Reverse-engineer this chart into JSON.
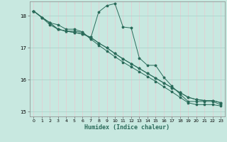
{
  "xlabel": "Humidex (Indice chaleur)",
  "bg_color": "#c8e8e0",
  "line_color": "#2a6b5a",
  "grid_color": "#a8d0c8",
  "grid_color_v": "#e8c8d0",
  "xlim": [
    -0.5,
    23.5
  ],
  "ylim": [
    14.85,
    18.45
  ],
  "yticks": [
    15,
    16,
    17,
    18
  ],
  "xticks": [
    0,
    1,
    2,
    3,
    4,
    5,
    6,
    7,
    8,
    9,
    10,
    11,
    12,
    13,
    14,
    15,
    16,
    17,
    18,
    19,
    20,
    21,
    22,
    23
  ],
  "line1_x": [
    0,
    1,
    2,
    3,
    4,
    5,
    6,
    7,
    8,
    9,
    10,
    11,
    12,
    13,
    14,
    15,
    16,
    17,
    18,
    19,
    20,
    21,
    22,
    23
  ],
  "line1_y": [
    18.15,
    17.95,
    17.78,
    17.58,
    17.52,
    17.48,
    17.43,
    17.33,
    17.15,
    17.0,
    16.82,
    16.65,
    16.5,
    16.35,
    16.2,
    16.05,
    15.9,
    15.75,
    15.6,
    15.45,
    15.38,
    15.35,
    15.35,
    15.28
  ],
  "line2_x": [
    0,
    1,
    2,
    3,
    4,
    5,
    6,
    7,
    8,
    9,
    10,
    11,
    12,
    13,
    14,
    15,
    16,
    17,
    18,
    19,
    20,
    21,
    22,
    23
  ],
  "line2_y": [
    18.15,
    17.95,
    17.78,
    17.58,
    17.52,
    17.48,
    17.43,
    17.33,
    17.15,
    17.0,
    16.82,
    16.65,
    16.5,
    16.35,
    16.2,
    16.05,
    15.9,
    15.75,
    15.6,
    15.45,
    15.38,
    15.35,
    15.35,
    15.28
  ],
  "line3_x": [
    0,
    2,
    3,
    4,
    5,
    6,
    7,
    8,
    9,
    10,
    11,
    12,
    13,
    14,
    15,
    16,
    17,
    18,
    19,
    20,
    21,
    22,
    23
  ],
  "line3_y": [
    18.15,
    17.78,
    17.72,
    17.58,
    17.58,
    17.5,
    17.28,
    18.12,
    18.32,
    18.38,
    17.65,
    17.62,
    16.68,
    16.45,
    16.45,
    16.08,
    15.8,
    15.55,
    15.32,
    15.32,
    15.32,
    15.32,
    15.22
  ],
  "line4_x": [
    0,
    1,
    2,
    3,
    4,
    5,
    6,
    7,
    8,
    9,
    10,
    11,
    12,
    13,
    14,
    15,
    16,
    17,
    18,
    19,
    20,
    21,
    22,
    23
  ],
  "line4_y": [
    18.15,
    17.95,
    17.72,
    17.58,
    17.52,
    17.52,
    17.48,
    17.28,
    17.08,
    16.9,
    16.72,
    16.55,
    16.4,
    16.25,
    16.1,
    15.95,
    15.78,
    15.62,
    15.45,
    15.28,
    15.22,
    15.22,
    15.22,
    15.18
  ]
}
